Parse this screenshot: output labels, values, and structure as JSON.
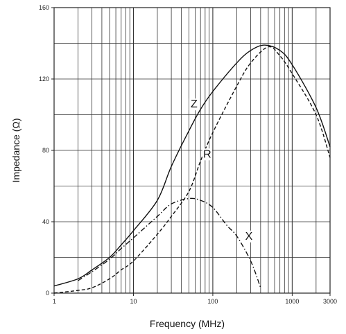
{
  "chart_data": {
    "type": "line",
    "title": "",
    "xlabel": "Frequency (MHz)",
    "ylabel": "Impedance (Ω)",
    "x_scale": "log",
    "xlim": [
      1,
      3000
    ],
    "ylim": [
      0,
      160
    ],
    "grid": true,
    "x_tick_labels": [
      "1",
      "10",
      "100",
      "1000",
      "3000"
    ],
    "x_tick_values": [
      1,
      10,
      100,
      1000,
      3000
    ],
    "y_tick_labels": [
      "0",
      "40",
      "80",
      "120",
      "160"
    ],
    "y_tick_values": [
      0,
      40,
      80,
      120,
      160
    ],
    "series": [
      {
        "name": "Z",
        "style": "solid",
        "x": [
          1,
          2,
          3,
          5,
          7,
          10,
          20,
          30,
          50,
          70,
          100,
          200,
          300,
          450,
          700,
          1000,
          2000,
          3000
        ],
        "y": [
          4,
          8,
          13,
          20,
          27,
          35,
          52,
          71,
          91,
          103,
          113,
          129,
          136,
          139,
          136,
          128,
          104,
          82
        ]
      },
      {
        "name": "R",
        "style": "dashed",
        "x": [
          1,
          2,
          3,
          5,
          7,
          10,
          20,
          30,
          50,
          70,
          100,
          200,
          300,
          500,
          700,
          1000,
          2000,
          3000
        ],
        "y": [
          0,
          1.5,
          3,
          8,
          13,
          18,
          33,
          43,
          57,
          74,
          90,
          116,
          129,
          138,
          133,
          123,
          100,
          76
        ]
      },
      {
        "name": "X",
        "style": "dashdot",
        "x": [
          2,
          3,
          5,
          7,
          10,
          20,
          30,
          50,
          70,
          100,
          150,
          200,
          300,
          400
        ],
        "y": [
          7,
          12,
          19,
          25,
          31,
          43,
          50,
          53,
          52,
          48,
          38,
          32,
          18,
          3
        ]
      }
    ],
    "annotations": [
      {
        "text": "Z",
        "x": 58,
        "y": 104
      },
      {
        "text": "R",
        "x": 85,
        "y": 76
      },
      {
        "text": "X",
        "x": 285,
        "y": 30
      }
    ]
  }
}
